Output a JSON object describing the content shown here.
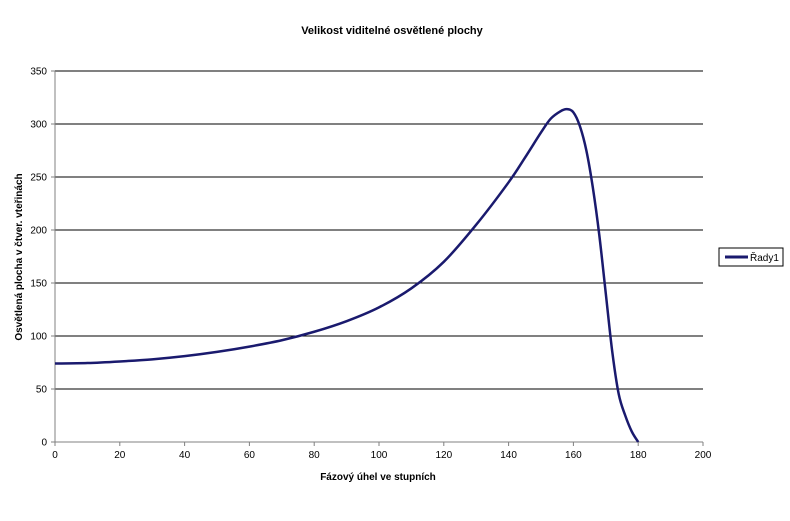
{
  "chart_data": {
    "type": "line",
    "title": "Velikost viditelné osvětlené plochy",
    "xlabel": "Fázový úhel ve stupních",
    "ylabel": "Osvětlená plocha v čtver. vteřinách",
    "xlim": [
      0,
      200
    ],
    "ylim": [
      0,
      350
    ],
    "xticks": [
      0,
      20,
      40,
      60,
      80,
      100,
      120,
      140,
      160,
      180,
      200
    ],
    "yticks": [
      0,
      50,
      100,
      150,
      200,
      250,
      300,
      350
    ],
    "grid": "horizontal",
    "legend_position": "right",
    "series": [
      {
        "name": "Řady1",
        "color": "#1a1a6e",
        "x": [
          0,
          10,
          20,
          30,
          40,
          50,
          60,
          70,
          80,
          90,
          100,
          110,
          120,
          130,
          140,
          145,
          150,
          153,
          156,
          158,
          160,
          162,
          164,
          166,
          168,
          170,
          172,
          174,
          176,
          178,
          180
        ],
        "y": [
          74,
          74.5,
          76,
          78,
          81,
          85,
          90,
          96,
          104,
          114,
          127,
          145,
          170,
          205,
          245,
          268,
          292,
          305,
          312,
          314,
          311,
          298,
          275,
          240,
          195,
          140,
          85,
          45,
          25,
          10,
          0
        ]
      }
    ]
  }
}
